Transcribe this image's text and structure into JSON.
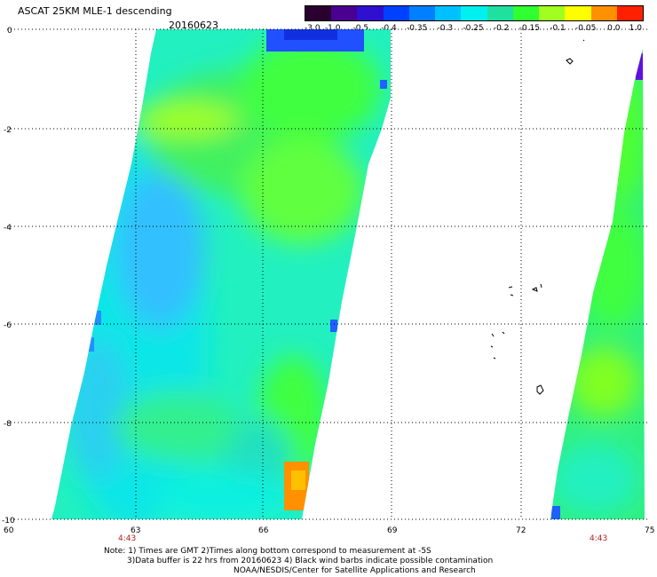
{
  "header": {
    "title": "ASCAT 25KM MLE-1 descending",
    "date": "20160623"
  },
  "colorbar": {
    "labels": [
      "-3.0",
      "-1.0",
      "-0.5",
      "-0.4",
      "-0.35",
      "-0.3",
      "-0.25",
      "-0.2",
      "-0.15",
      "-0.1",
      "-0.05",
      "0.0",
      "1.0"
    ],
    "colors": [
      "#2a0030",
      "#4a0090",
      "#3010d0",
      "#0040ff",
      "#0080ff",
      "#00c0ff",
      "#00f0f0",
      "#20e0a0",
      "#30ff30",
      "#a0ff20",
      "#ffff00",
      "#ff9000",
      "#ff2000"
    ]
  },
  "map_data": {
    "lat_ticks": [
      "0",
      "-2",
      "-4",
      "-6",
      "-8",
      "-10"
    ],
    "lon_ticks": [
      "60",
      "63",
      "66",
      "69",
      "72",
      "75"
    ],
    "lat_range": [
      -10,
      0
    ],
    "lon_range": [
      60,
      75
    ],
    "pass_times": [
      "4:43",
      "4:43"
    ]
  },
  "notes": {
    "line1": "Note: 1) Times are GMT 2)Times along bottom correspond to measurement at -5S",
    "line2": "3)Data buffer is 22 hrs from 20160623 4) Black wind barbs indicate possible contamination",
    "line3": "NOAA/NESDIS/Center for Satellite Applications and Research"
  }
}
